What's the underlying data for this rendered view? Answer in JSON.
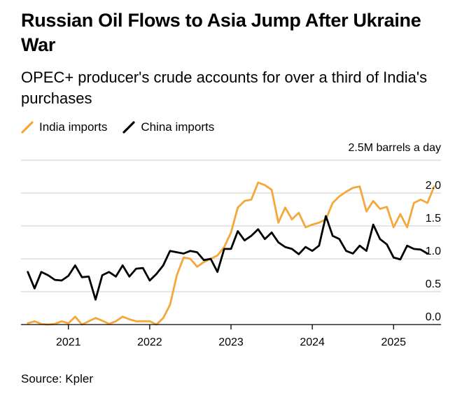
{
  "title": "Russian Oil Flows to Asia Jump After Ukraine War",
  "subtitle": "OPEC+ producer's crude accounts for over a third of India's purchases",
  "source": "Source: Kpler",
  "colors": {
    "india": "#f4a83a",
    "china": "#000000",
    "grid": "#cccccc",
    "axis": "#000000"
  },
  "chart_data": {
    "type": "line",
    "unit_label": "2.5M barrels a day",
    "y_ticks": [
      {
        "value": 2.0,
        "label": "2.0"
      },
      {
        "value": 1.5,
        "label": "1.5"
      },
      {
        "value": 1.0,
        "label": "1.0"
      },
      {
        "value": 0.5,
        "label": "0.5"
      },
      {
        "value": 0.0,
        "label": "0.0"
      }
    ],
    "y_gridlines": [
      2.5,
      2.0,
      1.5,
      1.0,
      0.5,
      0.0
    ],
    "ylim": [
      0,
      2.5
    ],
    "xlim": [
      "2020-06",
      "2025-08"
    ],
    "x_ticks": [
      "2021",
      "2022",
      "2023",
      "2024",
      "2025"
    ],
    "grid": true,
    "legend_position": "top-left",
    "series": [
      {
        "name": "India imports",
        "color": "#f4a83a",
        "points": [
          [
            "2020-07",
            0.02
          ],
          [
            "2020-08",
            0.05
          ],
          [
            "2020-09",
            0.01
          ],
          [
            "2020-10",
            0.0
          ],
          [
            "2020-11",
            0.01
          ],
          [
            "2020-12",
            0.05
          ],
          [
            "2021-01",
            0.02
          ],
          [
            "2021-02",
            0.12
          ],
          [
            "2021-03",
            0.0
          ],
          [
            "2021-04",
            0.05
          ],
          [
            "2021-05",
            0.1
          ],
          [
            "2021-06",
            0.06
          ],
          [
            "2021-07",
            0.01
          ],
          [
            "2021-08",
            0.05
          ],
          [
            "2021-09",
            0.12
          ],
          [
            "2021-10",
            0.08
          ],
          [
            "2021-11",
            0.05
          ],
          [
            "2021-12",
            0.05
          ],
          [
            "2022-01",
            0.05
          ],
          [
            "2022-02",
            0.0
          ],
          [
            "2022-03",
            0.1
          ],
          [
            "2022-04",
            0.3
          ],
          [
            "2022-05",
            0.75
          ],
          [
            "2022-06",
            1.02
          ],
          [
            "2022-07",
            1.0
          ],
          [
            "2022-08",
            0.88
          ],
          [
            "2022-09",
            0.95
          ],
          [
            "2022-10",
            1.0
          ],
          [
            "2022-11",
            1.05
          ],
          [
            "2022-12",
            1.18
          ],
          [
            "2023-01",
            1.4
          ],
          [
            "2023-02",
            1.78
          ],
          [
            "2023-03",
            1.88
          ],
          [
            "2023-04",
            1.9
          ],
          [
            "2023-05",
            2.16
          ],
          [
            "2023-06",
            2.12
          ],
          [
            "2023-07",
            2.05
          ],
          [
            "2023-08",
            1.55
          ],
          [
            "2023-09",
            1.78
          ],
          [
            "2023-10",
            1.6
          ],
          [
            "2023-11",
            1.7
          ],
          [
            "2023-12",
            1.48
          ],
          [
            "2024-01",
            1.52
          ],
          [
            "2024-02",
            1.55
          ],
          [
            "2024-03",
            1.6
          ],
          [
            "2024-04",
            1.85
          ],
          [
            "2024-05",
            1.95
          ],
          [
            "2024-06",
            2.02
          ],
          [
            "2024-07",
            2.08
          ],
          [
            "2024-08",
            2.1
          ],
          [
            "2024-09",
            1.72
          ],
          [
            "2024-10",
            1.88
          ],
          [
            "2024-11",
            1.76
          ],
          [
            "2024-12",
            1.79
          ],
          [
            "2025-01",
            1.48
          ],
          [
            "2025-02",
            1.68
          ],
          [
            "2025-03",
            1.48
          ],
          [
            "2025-04",
            1.85
          ],
          [
            "2025-05",
            1.9
          ],
          [
            "2025-06",
            1.85
          ],
          [
            "2025-07",
            2.1
          ]
        ]
      },
      {
        "name": "China imports",
        "color": "#000000",
        "points": [
          [
            "2020-07",
            0.8
          ],
          [
            "2020-08",
            0.55
          ],
          [
            "2020-09",
            0.8
          ],
          [
            "2020-10",
            0.75
          ],
          [
            "2020-11",
            0.68
          ],
          [
            "2020-12",
            0.67
          ],
          [
            "2021-01",
            0.74
          ],
          [
            "2021-02",
            0.9
          ],
          [
            "2021-03",
            0.72
          ],
          [
            "2021-04",
            0.73
          ],
          [
            "2021-05",
            0.38
          ],
          [
            "2021-06",
            0.75
          ],
          [
            "2021-07",
            0.8
          ],
          [
            "2021-08",
            0.73
          ],
          [
            "2021-09",
            0.9
          ],
          [
            "2021-10",
            0.73
          ],
          [
            "2021-11",
            0.85
          ],
          [
            "2021-12",
            0.86
          ],
          [
            "2022-01",
            0.67
          ],
          [
            "2022-02",
            0.77
          ],
          [
            "2022-03",
            0.9
          ],
          [
            "2022-04",
            1.12
          ],
          [
            "2022-05",
            1.1
          ],
          [
            "2022-06",
            1.08
          ],
          [
            "2022-07",
            1.12
          ],
          [
            "2022-08",
            1.1
          ],
          [
            "2022-09",
            0.98
          ],
          [
            "2022-10",
            1.0
          ],
          [
            "2022-11",
            0.8
          ],
          [
            "2022-12",
            1.15
          ],
          [
            "2023-01",
            1.15
          ],
          [
            "2023-02",
            1.42
          ],
          [
            "2023-03",
            1.28
          ],
          [
            "2023-04",
            1.35
          ],
          [
            "2023-05",
            1.45
          ],
          [
            "2023-06",
            1.3
          ],
          [
            "2023-07",
            1.4
          ],
          [
            "2023-08",
            1.25
          ],
          [
            "2023-09",
            1.18
          ],
          [
            "2023-10",
            1.15
          ],
          [
            "2023-11",
            1.07
          ],
          [
            "2023-12",
            1.18
          ],
          [
            "2024-01",
            1.12
          ],
          [
            "2024-02",
            1.2
          ],
          [
            "2024-03",
            1.65
          ],
          [
            "2024-04",
            1.35
          ],
          [
            "2024-05",
            1.3
          ],
          [
            "2024-06",
            1.12
          ],
          [
            "2024-07",
            1.08
          ],
          [
            "2024-08",
            1.2
          ],
          [
            "2024-09",
            1.12
          ],
          [
            "2024-10",
            1.52
          ],
          [
            "2024-11",
            1.3
          ],
          [
            "2024-12",
            1.22
          ],
          [
            "2025-01",
            1.02
          ],
          [
            "2025-02",
            0.99
          ],
          [
            "2025-03",
            1.2
          ],
          [
            "2025-04",
            1.15
          ],
          [
            "2025-05",
            1.14
          ],
          [
            "2025-06",
            1.08
          ]
        ]
      }
    ]
  }
}
